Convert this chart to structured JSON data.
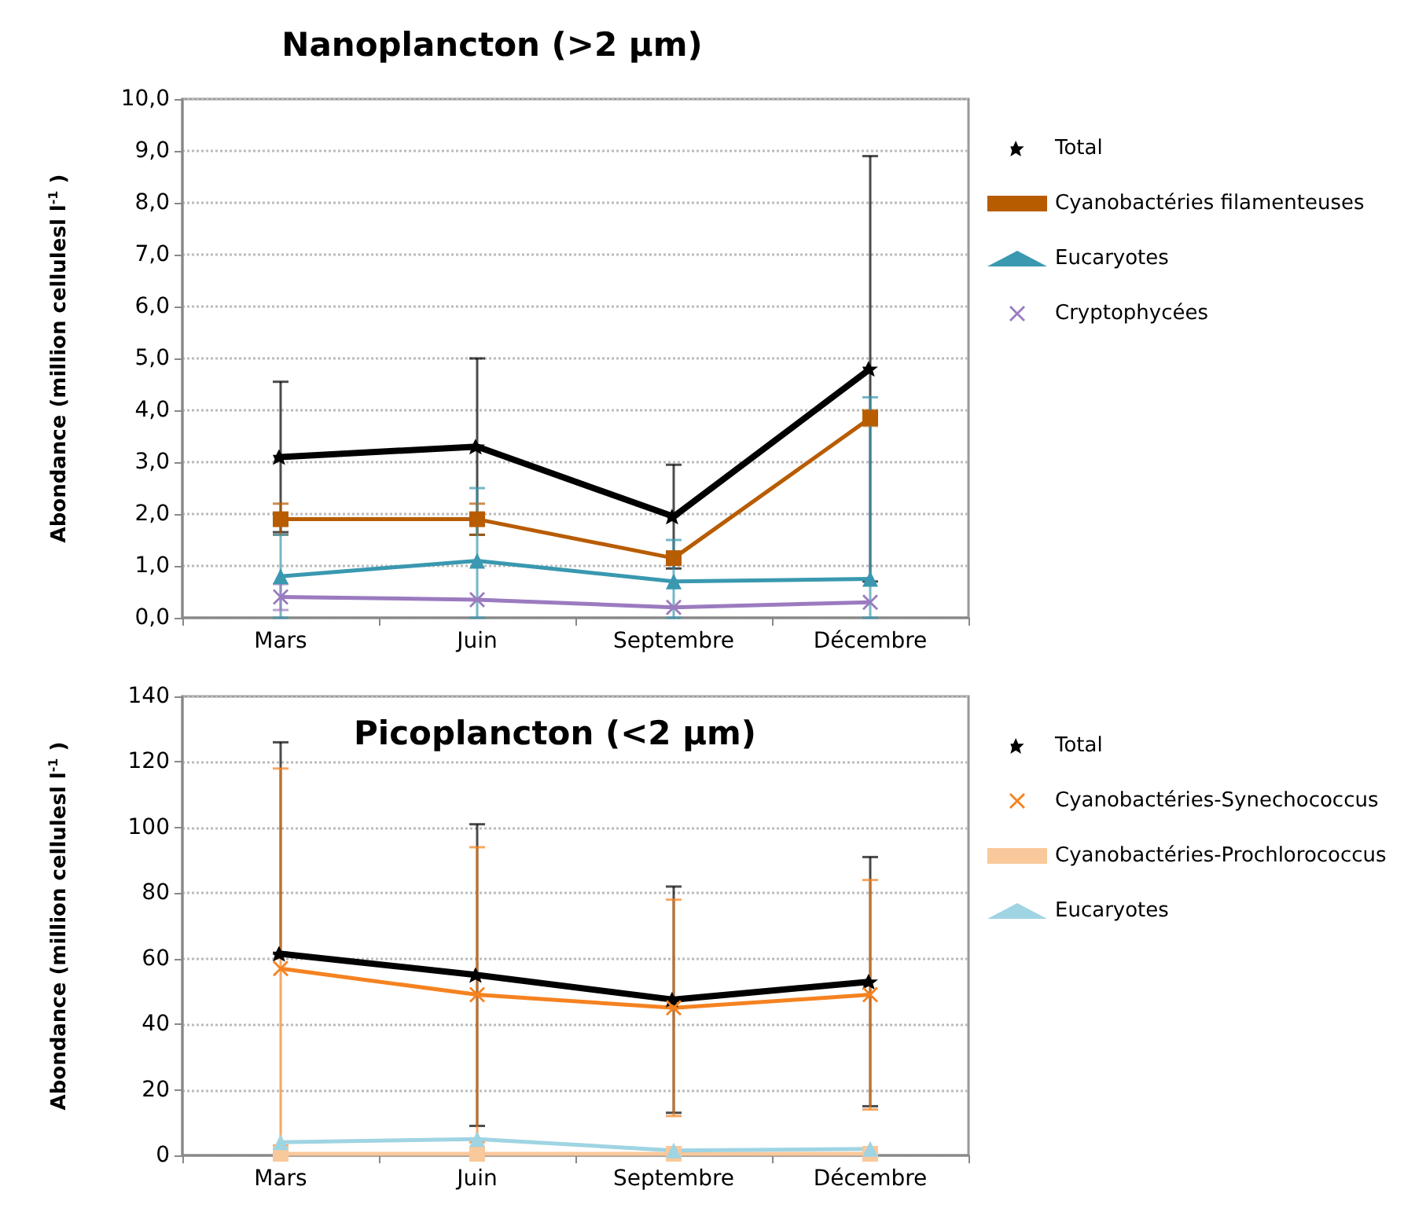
{
  "chart_data": [
    {
      "type": "line",
      "title": "Nanoplancton (>2 µm)",
      "ylabel": "Abondance (million cellulesl l$^{-1}$ )",
      "categories": [
        "Mars",
        "Juin",
        "Septembre",
        "Décembre"
      ],
      "ylim": [
        0,
        10
      ],
      "yticks": [
        {
          "value": 0,
          "label": "0,0"
        },
        {
          "value": 1,
          "label": "1,0"
        },
        {
          "value": 2,
          "label": "2,0"
        },
        {
          "value": 3,
          "label": "3,0"
        },
        {
          "value": 4,
          "label": "4,0"
        },
        {
          "value": 5,
          "label": "5,0"
        },
        {
          "value": 6,
          "label": "6,0"
        },
        {
          "value": 7,
          "label": "7,0"
        },
        {
          "value": 8,
          "label": "8,0"
        },
        {
          "value": 9,
          "label": "9,0"
        },
        {
          "value": 10,
          "label": "10,0"
        }
      ],
      "grid": "y",
      "legend": "right",
      "series": [
        {
          "name": "Total",
          "color": "#000000",
          "marker": "star",
          "values": [
            3.1,
            3.3,
            1.95,
            4.8
          ],
          "errors": [
            1.45,
            1.7,
            1.0,
            4.1
          ]
        },
        {
          "name": "Cyanobactéries filamenteuses",
          "color": "#b85c00",
          "marker": "square",
          "values": [
            1.9,
            1.9,
            1.15,
            3.85
          ],
          "errors": [
            0.3,
            0.3,
            null,
            0.15
          ]
        },
        {
          "name": "Eucaryotes",
          "color": "#3a98b0",
          "marker": "triangle",
          "values": [
            0.8,
            1.1,
            0.7,
            0.75
          ],
          "errors": [
            0.8,
            [
              0,
              2.5
            ],
            [
              0,
              1.5
            ],
            [
              0,
              4.25
            ]
          ]
        },
        {
          "name": "Cryptophycées",
          "color": "#9b7bbf",
          "marker": "cross",
          "values": [
            0.4,
            0.35,
            0.2,
            0.3
          ],
          "errors": [
            0.25,
            null,
            null,
            null
          ]
        }
      ]
    },
    {
      "type": "line",
      "title": "Picoplancton (<2 µm)",
      "ylabel": "Abondance (million cellulesl l$^{-1}$ )",
      "categories": [
        "Mars",
        "Juin",
        "Septembre",
        "Décembre"
      ],
      "ylim": [
        0,
        140
      ],
      "yticks": [
        0,
        20,
        40,
        60,
        80,
        100,
        120,
        140
      ],
      "grid": "y",
      "legend": "right",
      "series": [
        {
          "name": "Total",
          "color": "#000000",
          "marker": "star",
          "values": [
            61.5,
            55,
            47.5,
            53
          ],
          "errors": [
            [
              61.5,
              126
            ],
            46,
            34.5,
            38
          ]
        },
        {
          "name": "Cyanobactéries-Synechococcus",
          "color": "#f58220",
          "marker": "cross",
          "values": [
            57,
            49,
            45,
            49
          ],
          "errors": [
            [
              3,
              118
            ],
            45,
            33,
            35
          ]
        },
        {
          "name": "Cyanobactéries-Prochlorococcus",
          "color": "#f9c89b",
          "marker": "square",
          "values": [
            0.5,
            0.5,
            0.5,
            0.5
          ]
        },
        {
          "name": "Eucaryotes",
          "color": "#9fd4e3",
          "marker": "triangle",
          "values": [
            4,
            5,
            1.5,
            2
          ]
        }
      ]
    }
  ]
}
